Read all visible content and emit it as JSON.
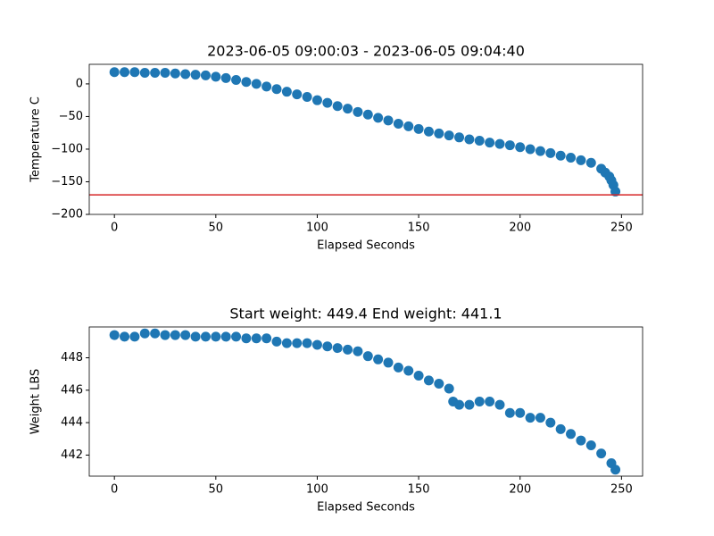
{
  "chart_data": [
    {
      "type": "scatter",
      "title": "2023-06-05 09:00:03 - 2023-06-05 09:04:40",
      "x_label": "Elapsed Seconds",
      "y_label": "Temperature C",
      "color": "#1f77b4",
      "x": [
        0,
        5,
        10,
        15,
        20,
        25,
        30,
        35,
        40,
        45,
        50,
        55,
        60,
        65,
        70,
        75,
        80,
        85,
        90,
        95,
        100,
        105,
        110,
        115,
        120,
        125,
        130,
        135,
        140,
        145,
        150,
        155,
        160,
        165,
        170,
        175,
        180,
        185,
        190,
        195,
        200,
        205,
        210,
        215,
        220,
        225,
        230,
        235,
        240,
        242,
        244,
        245,
        246,
        247
      ],
      "y": [
        18,
        18,
        18,
        17,
        17,
        17,
        16,
        15,
        14,
        13,
        11,
        9,
        6,
        3,
        0,
        -4,
        -8,
        -12,
        -16,
        -20,
        -25,
        -29,
        -34,
        -38,
        -43,
        -47,
        -52,
        -56,
        -61,
        -65,
        -69,
        -73,
        -76,
        -79,
        -82,
        -85,
        -87,
        -90,
        -92,
        -94,
        -97,
        -100,
        -103,
        -106,
        -110,
        -113,
        -117,
        -121,
        -130,
        -136,
        -142,
        -148,
        -155,
        -165
      ],
      "hline": -170,
      "hline_color": "#d62728",
      "xlim": [
        -12.4,
        260.4
      ],
      "ylim": [
        -200,
        30
      ],
      "xticks": [
        0,
        50,
        100,
        150,
        200,
        250
      ],
      "yticks": [
        0,
        {
          "value": -50,
          "label": "−50"
        },
        {
          "value": -100,
          "label": "−100"
        },
        {
          "value": -150,
          "label": "−150"
        },
        {
          "value": -200,
          "label": "−200"
        }
      ]
    },
    {
      "type": "scatter",
      "title": "Start weight: 449.4 End weight: 441.1",
      "x_label": "Elapsed Seconds",
      "y_label": "Weight LBS",
      "color": "#1f77b4",
      "x": [
        0,
        5,
        10,
        15,
        20,
        25,
        30,
        35,
        40,
        45,
        50,
        55,
        60,
        65,
        70,
        75,
        80,
        85,
        90,
        95,
        100,
        105,
        110,
        115,
        120,
        125,
        130,
        135,
        140,
        145,
        150,
        155,
        160,
        165,
        167,
        170,
        175,
        180,
        185,
        190,
        195,
        200,
        205,
        210,
        215,
        220,
        225,
        230,
        235,
        240,
        245,
        247
      ],
      "y": [
        449.4,
        449.3,
        449.3,
        449.5,
        449.5,
        449.4,
        449.4,
        449.4,
        449.3,
        449.3,
        449.3,
        449.3,
        449.3,
        449.2,
        449.2,
        449.2,
        449.0,
        448.9,
        448.9,
        448.9,
        448.8,
        448.7,
        448.6,
        448.5,
        448.4,
        448.1,
        447.9,
        447.7,
        447.4,
        447.2,
        446.9,
        446.6,
        446.4,
        446.1,
        445.3,
        445.1,
        445.1,
        445.3,
        445.3,
        445.1,
        444.6,
        444.6,
        444.3,
        444.3,
        444.0,
        443.6,
        443.3,
        442.9,
        442.6,
        442.1,
        441.5,
        441.1
      ],
      "xlim": [
        -12.4,
        260.4
      ],
      "ylim": [
        440.7,
        449.9
      ],
      "xticks": [
        0,
        50,
        100,
        150,
        200,
        250
      ],
      "yticks": [
        442,
        444,
        446,
        448
      ]
    }
  ]
}
